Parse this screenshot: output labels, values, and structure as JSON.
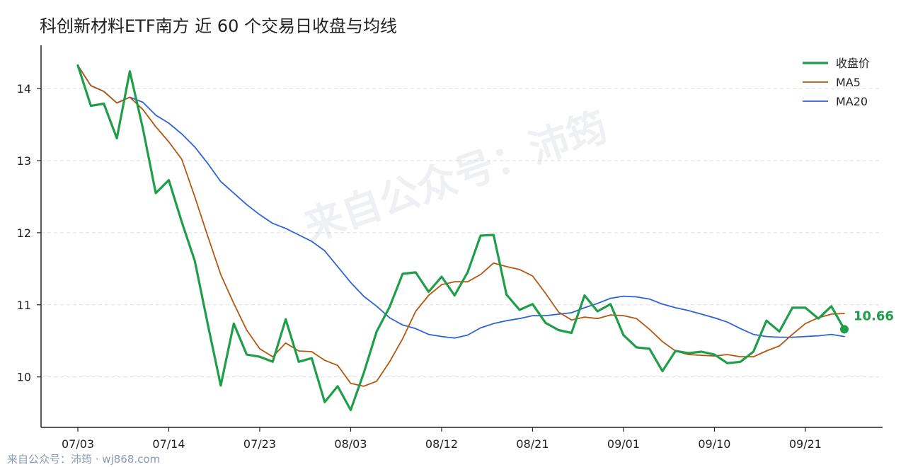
{
  "chart_data": {
    "type": "line",
    "title": "科创新材料ETF南方 近 60 个交易日收盘与均线",
    "xlabel": "",
    "ylabel": "",
    "ylim": [
      9.3,
      14.6
    ],
    "yticks": [
      "10",
      "11",
      "12",
      "13",
      "14"
    ],
    "x_tick_labels": [
      {
        "index": 0,
        "label": "07/03"
      },
      {
        "index": 7,
        "label": "07/14"
      },
      {
        "index": 14,
        "label": "07/23"
      },
      {
        "index": 21,
        "label": "08/03"
      },
      {
        "index": 28,
        "label": "08/12"
      },
      {
        "index": 35,
        "label": "08/21"
      },
      {
        "index": 42,
        "label": "09/01"
      },
      {
        "index": 49,
        "label": "09/10"
      },
      {
        "index": 56,
        "label": "09/21"
      }
    ],
    "grid": "horizontal",
    "legend_position": "top-right",
    "series": [
      {
        "name": "收盘价",
        "color": "#1f9e49",
        "values": [
          14.32,
          13.76,
          13.79,
          13.31,
          14.24,
          13.45,
          12.55,
          12.73,
          12.15,
          11.61,
          10.73,
          9.88,
          10.74,
          10.31,
          10.28,
          10.21,
          10.8,
          10.21,
          10.26,
          9.65,
          9.87,
          9.54,
          10.05,
          10.63,
          10.97,
          11.43,
          11.45,
          11.18,
          11.39,
          11.13,
          11.45,
          11.96,
          11.97,
          11.14,
          10.93,
          11.01,
          10.75,
          10.65,
          10.61,
          11.13,
          10.91,
          11.01,
          10.58,
          10.41,
          10.39,
          10.08,
          10.36,
          10.33,
          10.35,
          10.31,
          10.19,
          10.21,
          10.35,
          10.78,
          10.63,
          10.96,
          10.96,
          10.81,
          10.98,
          10.66
        ]
      },
      {
        "name": "MA5",
        "color": "#b5560f",
        "values": [
          14.32,
          14.04,
          13.96,
          13.8,
          13.88,
          13.71,
          13.47,
          13.26,
          13.02,
          12.5,
          11.95,
          11.42,
          11.02,
          10.65,
          10.39,
          10.28,
          10.47,
          10.36,
          10.35,
          10.23,
          10.16,
          9.91,
          9.87,
          9.94,
          10.21,
          10.53,
          10.91,
          11.13,
          11.28,
          11.32,
          11.32,
          11.42,
          11.58,
          11.53,
          11.49,
          11.4,
          11.16,
          10.9,
          10.79,
          10.83,
          10.81,
          10.86,
          10.85,
          10.81,
          10.66,
          10.49,
          10.36,
          10.31,
          10.3,
          10.29,
          10.31,
          10.28,
          10.28,
          10.36,
          10.43,
          10.59,
          10.74,
          10.82,
          10.87,
          10.88
        ]
      },
      {
        "name": "MA20",
        "color": "#2e62d9",
        "values": [
          14.32,
          14.04,
          13.96,
          13.8,
          13.88,
          13.81,
          13.63,
          13.52,
          13.37,
          13.19,
          12.96,
          12.71,
          12.55,
          12.39,
          12.25,
          12.13,
          12.06,
          11.97,
          11.88,
          11.75,
          11.53,
          11.31,
          11.12,
          10.98,
          10.82,
          10.72,
          10.67,
          10.59,
          10.56,
          10.54,
          10.58,
          10.68,
          10.74,
          10.78,
          10.81,
          10.85,
          10.85,
          10.87,
          10.89,
          10.96,
          11.02,
          11.09,
          11.12,
          11.11,
          11.08,
          11.01,
          10.96,
          10.92,
          10.87,
          10.82,
          10.76,
          10.67,
          10.59,
          10.56,
          10.55,
          10.55,
          10.56,
          10.57,
          10.59,
          10.56
        ]
      }
    ],
    "last_value_label": "10.66"
  },
  "watermark_text": "来自公众号：沛筠",
  "footer_text": "来自公众号：沛筠 · wj868.com"
}
